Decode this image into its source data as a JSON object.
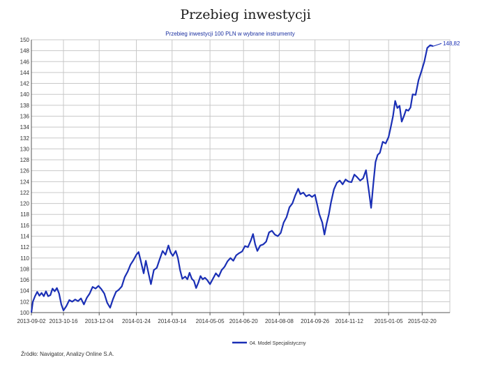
{
  "page": {
    "title": "Przebieg inwestycji",
    "source": "Źródło: Navigator, Analizy Online S.A."
  },
  "chart_data": {
    "type": "line",
    "title": "",
    "subtitle": "Przebieg inwestycji 100 PLN w wybrane instrumenty",
    "xlabel": "",
    "ylabel": "",
    "ylim": [
      100,
      150
    ],
    "y_ticks": [
      100,
      102,
      104,
      106,
      108,
      110,
      112,
      114,
      116,
      118,
      120,
      122,
      124,
      126,
      128,
      130,
      132,
      134,
      136,
      138,
      140,
      142,
      144,
      146,
      148,
      150
    ],
    "x_range": [
      "2013-09-02",
      "2015-03-30"
    ],
    "x_ticks": [
      "2013-09-02",
      "2013-10-16",
      "2013-12-04",
      "2014-01-24",
      "2014-03-14",
      "2014-05-05",
      "2014-06-20",
      "2014-08-08",
      "2014-09-26",
      "2014-11-12",
      "2015-01-05",
      "2015-02-20"
    ],
    "grid": true,
    "legend_position": "bottom",
    "end_value_label": "148,82",
    "colors": {
      "series": "#1a2fb5",
      "grid": "#c8c8c8",
      "axis": "#555555",
      "subtitle": "#1a2fa0"
    },
    "series": [
      {
        "name": "04. Model Specjalistyczny",
        "points": [
          [
            "2013-09-02",
            100.0
          ],
          [
            "2013-09-04",
            102.0
          ],
          [
            "2013-09-07",
            103.0
          ],
          [
            "2013-09-10",
            103.8
          ],
          [
            "2013-09-13",
            103.1
          ],
          [
            "2013-09-16",
            103.6
          ],
          [
            "2013-09-19",
            103.0
          ],
          [
            "2013-09-22",
            103.9
          ],
          [
            "2013-09-25",
            103.0
          ],
          [
            "2013-09-28",
            103.2
          ],
          [
            "2013-10-01",
            104.4
          ],
          [
            "2013-10-04",
            103.9
          ],
          [
            "2013-10-07",
            104.5
          ],
          [
            "2013-10-10",
            103.5
          ],
          [
            "2013-10-13",
            101.5
          ],
          [
            "2013-10-16",
            100.4
          ],
          [
            "2013-10-20",
            101.2
          ],
          [
            "2013-10-24",
            102.3
          ],
          [
            "2013-10-28",
            102.0
          ],
          [
            "2013-11-01",
            102.4
          ],
          [
            "2013-11-05",
            102.1
          ],
          [
            "2013-11-09",
            102.6
          ],
          [
            "2013-11-13",
            101.5
          ],
          [
            "2013-11-17",
            102.7
          ],
          [
            "2013-11-21",
            103.5
          ],
          [
            "2013-11-25",
            104.7
          ],
          [
            "2013-11-29",
            104.4
          ],
          [
            "2013-12-03",
            104.9
          ],
          [
            "2013-12-07",
            104.3
          ],
          [
            "2013-12-11",
            103.5
          ],
          [
            "2013-12-15",
            101.8
          ],
          [
            "2013-12-19",
            100.9
          ],
          [
            "2013-12-23",
            102.5
          ],
          [
            "2013-12-27",
            103.8
          ],
          [
            "2013-12-31",
            104.2
          ],
          [
            "2014-01-04",
            104.8
          ],
          [
            "2014-01-08",
            106.5
          ],
          [
            "2014-01-12",
            107.5
          ],
          [
            "2014-01-16",
            108.8
          ],
          [
            "2014-01-20",
            109.6
          ],
          [
            "2014-01-24",
            110.6
          ],
          [
            "2014-01-27",
            111.1
          ],
          [
            "2014-01-30",
            109.5
          ],
          [
            "2014-02-03",
            107.2
          ],
          [
            "2014-02-06",
            109.5
          ],
          [
            "2014-02-10",
            107.0
          ],
          [
            "2014-02-13",
            105.2
          ],
          [
            "2014-02-17",
            107.8
          ],
          [
            "2014-02-21",
            108.2
          ],
          [
            "2014-02-25",
            109.8
          ],
          [
            "2014-03-01",
            111.3
          ],
          [
            "2014-03-05",
            110.6
          ],
          [
            "2014-03-09",
            112.3
          ],
          [
            "2014-03-12",
            111.0
          ],
          [
            "2014-03-15",
            110.4
          ],
          [
            "2014-03-19",
            111.3
          ],
          [
            "2014-03-22",
            110.0
          ],
          [
            "2014-03-25",
            107.8
          ],
          [
            "2014-03-28",
            106.2
          ],
          [
            "2014-04-01",
            106.6
          ],
          [
            "2014-04-04",
            106.1
          ],
          [
            "2014-04-07",
            107.3
          ],
          [
            "2014-04-10",
            106.2
          ],
          [
            "2014-04-13",
            105.8
          ],
          [
            "2014-04-16",
            104.5
          ],
          [
            "2014-04-19",
            105.5
          ],
          [
            "2014-04-22",
            106.7
          ],
          [
            "2014-04-25",
            106.1
          ],
          [
            "2014-04-28",
            106.4
          ],
          [
            "2014-05-01",
            106.0
          ],
          [
            "2014-05-05",
            105.2
          ],
          [
            "2014-05-09",
            106.2
          ],
          [
            "2014-05-13",
            107.2
          ],
          [
            "2014-05-17",
            106.6
          ],
          [
            "2014-05-21",
            107.8
          ],
          [
            "2014-05-25",
            108.4
          ],
          [
            "2014-05-29",
            109.4
          ],
          [
            "2014-06-02",
            110.0
          ],
          [
            "2014-06-06",
            109.5
          ],
          [
            "2014-06-10",
            110.5
          ],
          [
            "2014-06-14",
            110.9
          ],
          [
            "2014-06-18",
            111.2
          ],
          [
            "2014-06-22",
            112.2
          ],
          [
            "2014-06-26",
            112.0
          ],
          [
            "2014-06-30",
            113.2
          ],
          [
            "2014-07-03",
            114.4
          ],
          [
            "2014-07-06",
            112.5
          ],
          [
            "2014-07-09",
            111.3
          ],
          [
            "2014-07-13",
            112.3
          ],
          [
            "2014-07-17",
            112.5
          ],
          [
            "2014-07-21",
            113.0
          ],
          [
            "2014-07-25",
            114.7
          ],
          [
            "2014-07-29",
            115.0
          ],
          [
            "2014-08-02",
            114.3
          ],
          [
            "2014-08-06",
            114.0
          ],
          [
            "2014-08-10",
            114.6
          ],
          [
            "2014-08-14",
            116.5
          ],
          [
            "2014-08-18",
            117.5
          ],
          [
            "2014-08-22",
            119.3
          ],
          [
            "2014-08-26",
            120.0
          ],
          [
            "2014-08-30",
            121.5
          ],
          [
            "2014-09-03",
            122.7
          ],
          [
            "2014-09-06",
            121.7
          ],
          [
            "2014-09-10",
            122.0
          ],
          [
            "2014-09-14",
            121.3
          ],
          [
            "2014-09-18",
            121.6
          ],
          [
            "2014-09-22",
            121.2
          ],
          [
            "2014-09-26",
            121.6
          ],
          [
            "2014-09-29",
            119.8
          ],
          [
            "2014-10-02",
            118.0
          ],
          [
            "2014-10-06",
            116.5
          ],
          [
            "2014-10-09",
            114.3
          ],
          [
            "2014-10-12",
            116.3
          ],
          [
            "2014-10-15",
            118.0
          ],
          [
            "2014-10-18",
            120.2
          ],
          [
            "2014-10-22",
            122.6
          ],
          [
            "2014-10-26",
            123.8
          ],
          [
            "2014-10-30",
            124.2
          ],
          [
            "2014-11-03",
            123.5
          ],
          [
            "2014-11-07",
            124.4
          ],
          [
            "2014-11-11",
            124.0
          ],
          [
            "2014-11-15",
            123.9
          ],
          [
            "2014-11-19",
            125.3
          ],
          [
            "2014-11-23",
            124.8
          ],
          [
            "2014-11-27",
            124.2
          ],
          [
            "2014-12-01",
            124.6
          ],
          [
            "2014-12-05",
            126.1
          ],
          [
            "2014-12-09",
            122.2
          ],
          [
            "2014-12-12",
            119.2
          ],
          [
            "2014-12-15",
            123.5
          ],
          [
            "2014-12-18",
            127.6
          ],
          [
            "2014-12-21",
            128.9
          ],
          [
            "2014-12-24",
            129.3
          ],
          [
            "2014-12-28",
            131.3
          ],
          [
            "2015-01-01",
            131.0
          ],
          [
            "2015-01-05",
            132.2
          ],
          [
            "2015-01-08",
            134.0
          ],
          [
            "2015-01-11",
            136.0
          ],
          [
            "2015-01-14",
            138.8
          ],
          [
            "2015-01-17",
            137.5
          ],
          [
            "2015-01-20",
            137.9
          ],
          [
            "2015-01-23",
            135.0
          ],
          [
            "2015-01-26",
            136.0
          ],
          [
            "2015-01-29",
            137.2
          ],
          [
            "2015-02-01",
            137.0
          ],
          [
            "2015-02-04",
            137.6
          ],
          [
            "2015-02-07",
            140.0
          ],
          [
            "2015-02-11",
            139.9
          ],
          [
            "2015-02-15",
            142.6
          ],
          [
            "2015-02-19",
            144.2
          ],
          [
            "2015-02-23",
            146.0
          ],
          [
            "2015-02-27",
            148.5
          ],
          [
            "2015-03-03",
            149.0
          ],
          [
            "2015-03-07",
            148.82
          ]
        ]
      }
    ]
  }
}
